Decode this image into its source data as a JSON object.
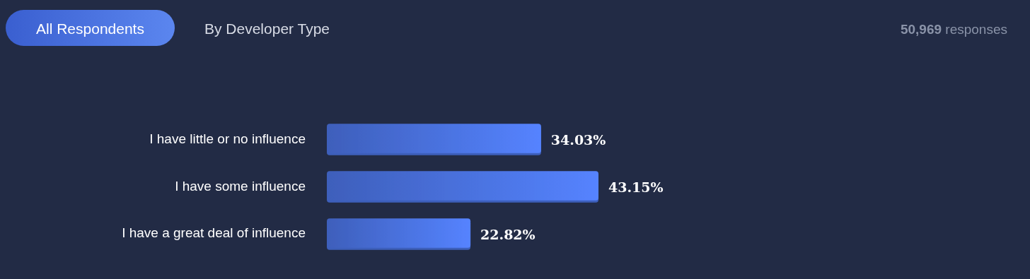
{
  "chart_data": {
    "type": "bar",
    "orientation": "horizontal",
    "categories": [
      "I have little or no influence",
      "I have some influence",
      "I have a great deal of influence"
    ],
    "values": [
      34.03,
      43.15,
      22.82
    ],
    "value_labels": [
      "34.03%",
      "43.15%",
      "22.82%"
    ],
    "color": "#4a72e0",
    "annotations": [
      "All Respondents",
      "By Developer Type",
      "50,969 responses"
    ]
  }
}
